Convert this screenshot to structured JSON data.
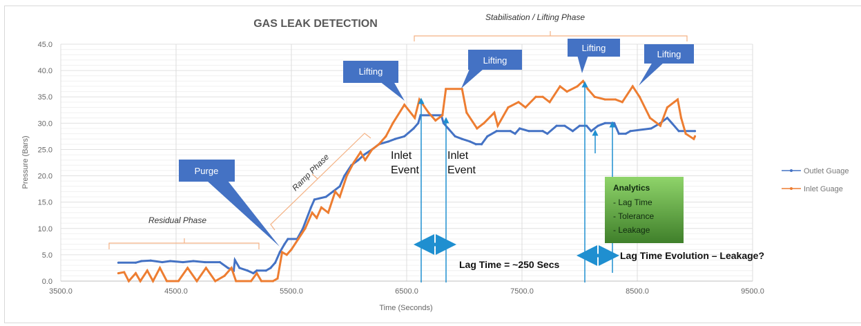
{
  "chart_data": {
    "type": "line",
    "title": "GAS LEAK DETECTION",
    "xlabel": "Time (Seconds)",
    "ylabel": "Pressure (Bars)",
    "xlim": [
      3500,
      9500
    ],
    "ylim": [
      0,
      45
    ],
    "x_ticks": [
      "3500.0",
      "4500.0",
      "5500.0",
      "6500.0",
      "7500.0",
      "8500.0",
      "9500.0"
    ],
    "y_ticks": [
      "0.0",
      "5.0",
      "10.0",
      "15.0",
      "20.0",
      "25.0",
      "30.0",
      "35.0",
      "40.0",
      "45.0"
    ],
    "grid": true,
    "legend_placement": "right",
    "series": [
      {
        "name": "Outlet Guage",
        "color": "#4472C4",
        "points": [
          [
            4000,
            3.5
          ],
          [
            4150,
            3.5
          ],
          [
            4200,
            3.8
          ],
          [
            4280,
            3.9
          ],
          [
            4380,
            3.6
          ],
          [
            4450,
            3.8
          ],
          [
            4560,
            3.6
          ],
          [
            4650,
            3.8
          ],
          [
            4750,
            3.6
          ],
          [
            4880,
            3.6
          ],
          [
            4950,
            2.5
          ],
          [
            5000,
            2.0
          ],
          [
            5010,
            4.0
          ],
          [
            5050,
            2.5
          ],
          [
            5120,
            2.0
          ],
          [
            5170,
            1.5
          ],
          [
            5200,
            2.0
          ],
          [
            5280,
            2.0
          ],
          [
            5320,
            2.5
          ],
          [
            5360,
            3.5
          ],
          [
            5400,
            5.5
          ],
          [
            5440,
            7
          ],
          [
            5470,
            8
          ],
          [
            5550,
            8
          ],
          [
            5600,
            10
          ],
          [
            5670,
            14
          ],
          [
            5700,
            15.5
          ],
          [
            5800,
            16
          ],
          [
            5860,
            17
          ],
          [
            5920,
            18
          ],
          [
            5960,
            20
          ],
          [
            6020,
            22
          ],
          [
            6080,
            23
          ],
          [
            6130,
            24
          ],
          [
            6200,
            25
          ],
          [
            6260,
            26
          ],
          [
            6340,
            26.5
          ],
          [
            6400,
            27
          ],
          [
            6480,
            27.5
          ],
          [
            6560,
            29
          ],
          [
            6600,
            30
          ],
          [
            6620,
            31.5
          ],
          [
            6800,
            31.5
          ],
          [
            6820,
            30
          ],
          [
            6860,
            29
          ],
          [
            6920,
            27.5
          ],
          [
            6980,
            27
          ],
          [
            7050,
            26.5
          ],
          [
            7100,
            26
          ],
          [
            7150,
            26
          ],
          [
            7200,
            27.5
          ],
          [
            7280,
            28.5
          ],
          [
            7400,
            28.5
          ],
          [
            7440,
            28
          ],
          [
            7480,
            29
          ],
          [
            7560,
            28.5
          ],
          [
            7680,
            28.5
          ],
          [
            7720,
            28
          ],
          [
            7800,
            29.5
          ],
          [
            7870,
            29.5
          ],
          [
            7940,
            28.5
          ],
          [
            8000,
            29.5
          ],
          [
            8060,
            29.5
          ],
          [
            8100,
            28.5
          ],
          [
            8160,
            29.5
          ],
          [
            8220,
            30
          ],
          [
            8300,
            30
          ],
          [
            8340,
            28
          ],
          [
            8400,
            28
          ],
          [
            8440,
            28.5
          ],
          [
            8620,
            29
          ],
          [
            8700,
            30
          ],
          [
            8760,
            31
          ],
          [
            8800,
            30
          ],
          [
            8860,
            28.5
          ],
          [
            9000,
            28.5
          ]
        ]
      },
      {
        "name": "Inlet Guage",
        "color": "#ED7D31",
        "points": [
          [
            4000,
            1.5
          ],
          [
            4050,
            1.7
          ],
          [
            4090,
            0
          ],
          [
            4150,
            1.5
          ],
          [
            4190,
            0
          ],
          [
            4250,
            2
          ],
          [
            4300,
            0
          ],
          [
            4360,
            2.5
          ],
          [
            4420,
            0
          ],
          [
            4520,
            0
          ],
          [
            4600,
            2.5
          ],
          [
            4680,
            0
          ],
          [
            4760,
            2.5
          ],
          [
            4840,
            0
          ],
          [
            4920,
            1
          ],
          [
            4980,
            2.5
          ],
          [
            5020,
            0
          ],
          [
            5150,
            0
          ],
          [
            5200,
            1.5
          ],
          [
            5240,
            0
          ],
          [
            5340,
            0
          ],
          [
            5380,
            0.5
          ],
          [
            5420,
            5.5
          ],
          [
            5460,
            5
          ],
          [
            5500,
            6
          ],
          [
            5560,
            8
          ],
          [
            5620,
            10
          ],
          [
            5680,
            13
          ],
          [
            5720,
            12
          ],
          [
            5760,
            14
          ],
          [
            5820,
            13
          ],
          [
            5880,
            17
          ],
          [
            5920,
            16
          ],
          [
            5980,
            20
          ],
          [
            6040,
            22.5
          ],
          [
            6100,
            24.5
          ],
          [
            6140,
            23
          ],
          [
            6200,
            25
          ],
          [
            6260,
            26
          ],
          [
            6320,
            27.5
          ],
          [
            6380,
            30
          ],
          [
            6480,
            33.5
          ],
          [
            6570,
            31
          ],
          [
            6610,
            34.5
          ],
          [
            6690,
            32
          ],
          [
            6750,
            30.5
          ],
          [
            6810,
            31.5
          ],
          [
            6840,
            36.5
          ],
          [
            6980,
            36.5
          ],
          [
            7020,
            32
          ],
          [
            7110,
            29
          ],
          [
            7170,
            30
          ],
          [
            7260,
            32
          ],
          [
            7290,
            29.5
          ],
          [
            7380,
            33
          ],
          [
            7470,
            34
          ],
          [
            7530,
            33
          ],
          [
            7620,
            35
          ],
          [
            7680,
            35
          ],
          [
            7740,
            34
          ],
          [
            7830,
            37
          ],
          [
            7890,
            36
          ],
          [
            7980,
            37
          ],
          [
            8030,
            38
          ],
          [
            8070,
            36.5
          ],
          [
            8130,
            35
          ],
          [
            8220,
            34.5
          ],
          [
            8310,
            34.5
          ],
          [
            8370,
            34
          ],
          [
            8460,
            37
          ],
          [
            8520,
            35
          ],
          [
            8610,
            31
          ],
          [
            8700,
            29.5
          ],
          [
            8760,
            33
          ],
          [
            8820,
            34
          ],
          [
            8850,
            34.5
          ],
          [
            8880,
            31
          ],
          [
            8920,
            28
          ],
          [
            8990,
            27
          ],
          [
            9000,
            27.5
          ]
        ]
      }
    ],
    "annotations": {
      "phases": [
        "Residual Phase",
        "Ramp Phase",
        "Stabilisation / Lifting Phase"
      ],
      "callouts": [
        "Purge",
        "Lifting",
        "Lifting",
        "Lifting",
        "Lifting"
      ],
      "events": [
        "Inlet",
        "Event",
        "Inlet",
        "Event"
      ],
      "lag_time": "Lag Time = ~250 Secs",
      "lag_evolution": "Lag Time Evolution – Leakage?",
      "analytics_title": "Analytics",
      "analytics_items": [
        "- Lag Time",
        "- Tolerance",
        "- Leakage"
      ]
    }
  }
}
